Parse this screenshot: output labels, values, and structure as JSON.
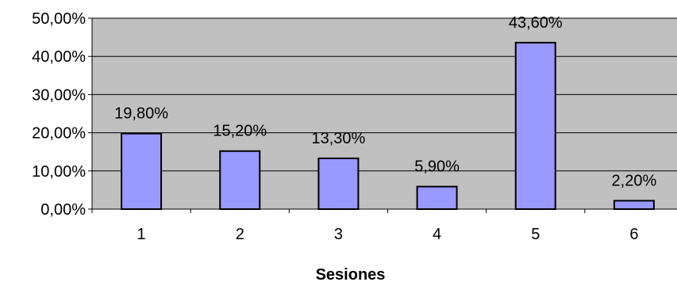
{
  "chart_data": {
    "type": "bar",
    "title": "",
    "xlabel": "Sesiones",
    "ylabel": "",
    "categories": [
      "1",
      "2",
      "3",
      "4",
      "5",
      "6"
    ],
    "values": [
      19.8,
      15.2,
      13.3,
      5.9,
      43.6,
      2.2
    ],
    "value_labels": [
      "19,80%",
      "15,20%",
      "13,30%",
      "5,90%",
      "43,60%",
      "2,20%"
    ],
    "ylim": [
      0,
      50
    ],
    "y_ticks": [
      0,
      10,
      20,
      30,
      40,
      50
    ],
    "y_tick_labels": [
      "0,00%",
      "10,00%",
      "20,00%",
      "30,00%",
      "40,00%",
      "50,00%"
    ],
    "grid": true,
    "legend": "none",
    "colors": {
      "plot_background": "#c0c0c0",
      "bar_fill": "#9999ff",
      "bar_stroke": "#000000",
      "gridline": "#000000"
    }
  }
}
